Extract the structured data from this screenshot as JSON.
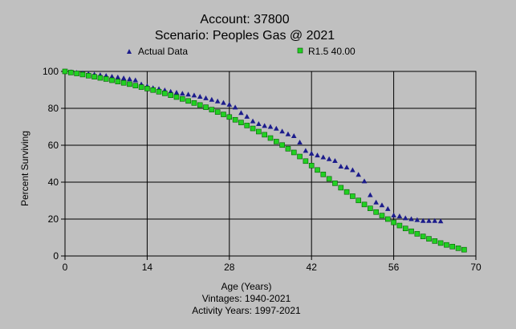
{
  "chart_data": {
    "type": "scatter",
    "title": [
      "Account: 37800",
      "Scenario: Peoples Gas @ 2021"
    ],
    "xlabel": "Age (Years)",
    "ylabel": "Percent Surviving",
    "footer": [
      "Vintages: 1940-2021",
      "Activity Years: 1997-2021"
    ],
    "xlim": [
      0,
      70
    ],
    "ylim": [
      0,
      100
    ],
    "xticks": [
      0,
      14,
      28,
      42,
      56,
      70
    ],
    "yticks": [
      0,
      20,
      40,
      60,
      80,
      100
    ],
    "grid": true,
    "legend": "top",
    "series": [
      {
        "name": "Actual Data",
        "marker": "triangle",
        "color": "#1c1c8c",
        "x": [
          0,
          1,
          2,
          3,
          4,
          5,
          6,
          7,
          8,
          9,
          10,
          11,
          12,
          13,
          14,
          15,
          16,
          17,
          18,
          19,
          20,
          21,
          22,
          23,
          24,
          25,
          26,
          27,
          28,
          29,
          30,
          31,
          32,
          33,
          34,
          35,
          36,
          37,
          38,
          39,
          40,
          41,
          42,
          43,
          44,
          45,
          46,
          47,
          48,
          49,
          50,
          51,
          52,
          53,
          54,
          55,
          56,
          57,
          58,
          59,
          60,
          61,
          62,
          63,
          64
        ],
        "y": [
          100,
          99.6,
          99.3,
          99.0,
          98.7,
          98.3,
          98.0,
          97.6,
          97.2,
          96.8,
          96.3,
          95.8,
          95.2,
          93.0,
          92.0,
          91.0,
          90.5,
          89.8,
          89.0,
          88.5,
          88.0,
          87.5,
          87.0,
          86.3,
          85.5,
          84.7,
          83.8,
          83.0,
          82.0,
          80.5,
          77.5,
          75.5,
          73.0,
          71.5,
          70.5,
          70.0,
          69.0,
          67.5,
          66.0,
          65.0,
          61.5,
          57.0,
          55.5,
          54.5,
          53.5,
          52.5,
          51.5,
          48.5,
          48.0,
          46.5,
          44.0,
          40.5,
          33.0,
          29.0,
          27.5,
          25.5,
          22.0,
          21.5,
          20.5,
          20.0,
          19.5,
          19.0,
          19.0,
          19.0,
          18.8
        ]
      },
      {
        "name": "R1.5 40.00",
        "marker": "square",
        "color": "#22d022",
        "x": [
          0,
          1,
          2,
          3,
          4,
          5,
          6,
          7,
          8,
          9,
          10,
          11,
          12,
          13,
          14,
          15,
          16,
          17,
          18,
          19,
          20,
          21,
          22,
          23,
          24,
          25,
          26,
          27,
          28,
          29,
          30,
          31,
          32,
          33,
          34,
          35,
          36,
          37,
          38,
          39,
          40,
          41,
          42,
          43,
          44,
          45,
          46,
          47,
          48,
          49,
          50,
          51,
          52,
          53,
          54,
          55,
          56,
          57,
          58,
          59,
          60,
          61,
          62,
          63,
          64,
          65,
          66,
          67,
          68
        ],
        "y": [
          100,
          99.4,
          98.9,
          98.3,
          97.7,
          97.1,
          96.5,
          95.9,
          95.2,
          94.5,
          93.8,
          93.1,
          92.3,
          91.5,
          90.7,
          89.9,
          89.0,
          88.1,
          87.1,
          86.1,
          85.1,
          84.0,
          82.9,
          81.8,
          80.6,
          79.3,
          78.0,
          76.7,
          75.3,
          73.8,
          72.3,
          70.7,
          69.1,
          67.4,
          65.7,
          63.9,
          62.0,
          60.1,
          58.1,
          56.1,
          53.9,
          51.4,
          49.0,
          46.6,
          44.2,
          41.8,
          39.4,
          37.0,
          34.7,
          32.4,
          30.1,
          27.9,
          25.8,
          23.8,
          21.9,
          20.0,
          18.2,
          16.5,
          14.9,
          13.4,
          12.0,
          10.6,
          9.3,
          8.1,
          7.0,
          6.0,
          5.1,
          4.2,
          3.4
        ]
      }
    ]
  }
}
